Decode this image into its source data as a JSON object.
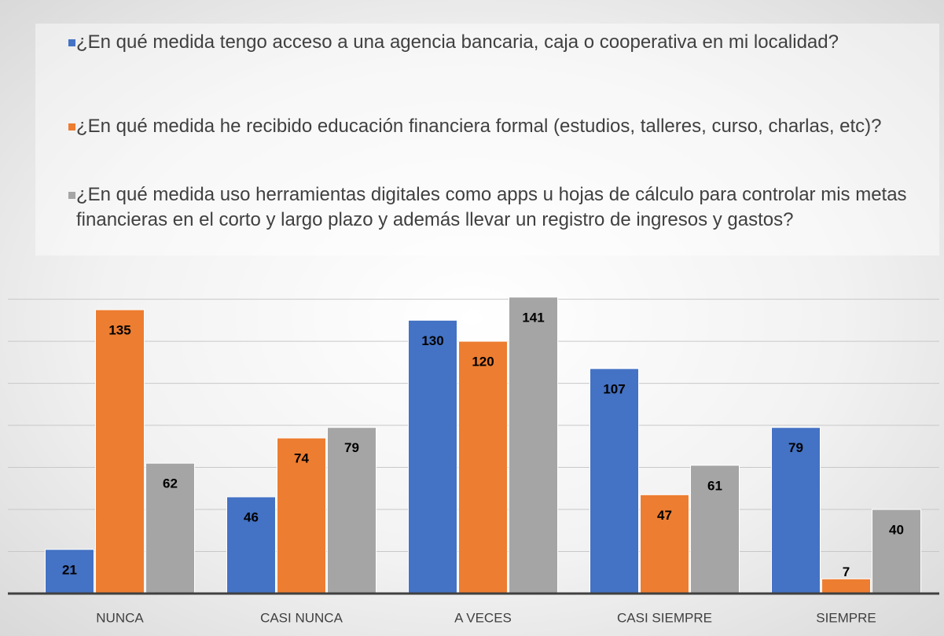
{
  "chart_data": {
    "type": "bar",
    "categories": [
      "NUNCA",
      "CASI NUNCA",
      "A VECES",
      "CASI SIEMPRE",
      "SIEMPRE"
    ],
    "series": [
      {
        "name": "¿En qué medida tengo acceso a una agencia bancaria, caja o cooperativa en mi localidad?",
        "color": "#4472c4",
        "values": [
          21,
          46,
          130,
          107,
          79
        ]
      },
      {
        "name": "¿En qué medida he recibido educación financiera formal (estudios, talleres, curso, charlas, etc)?",
        "color": "#ed7d31",
        "values": [
          135,
          74,
          120,
          47,
          7
        ]
      },
      {
        "name": "¿En qué medida uso herramientas digitales como apps u hojas de cálculo para controlar mis metas financieras en el corto y largo plazo y además llevar un registro de ingresos y gastos?",
        "color": "#a5a5a5",
        "values": [
          62,
          79,
          141,
          61,
          40
        ]
      }
    ],
    "ylim": [
      0,
      140
    ],
    "yticks": [
      0,
      20,
      40,
      60,
      80,
      100,
      120,
      140
    ],
    "grid": true,
    "legend": "top"
  }
}
